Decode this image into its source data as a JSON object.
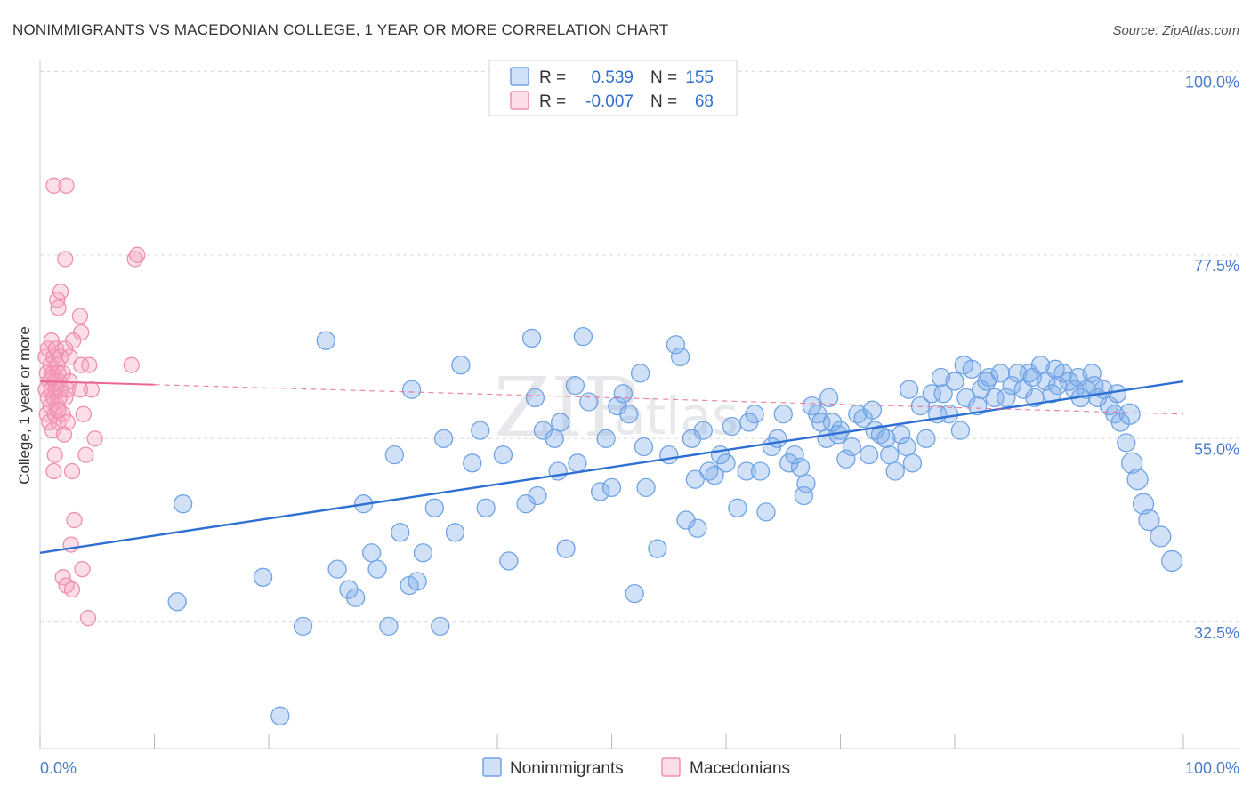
{
  "title": "NONIMMIGRANTS VS MACEDONIAN COLLEGE, 1 YEAR OR MORE CORRELATION CHART",
  "source": "Source: ZipAtlas.com",
  "watermark": {
    "zip": "ZIP",
    "atlas": "atlas"
  },
  "colors": {
    "blue": "#6fa3e6",
    "blue_fill": "rgba(120,168,232,0.35)",
    "blue_line": "#2d6fd2",
    "pink": "#ef8fb0",
    "pink_fill": "rgba(245,160,190,0.35)",
    "pink_line": "#e8688f",
    "grid": "#d8d8d8",
    "tick_label": "#4a7cc9"
  },
  "legend": {
    "rows": [
      {
        "r_label": "R =",
        "r_value": "0.539",
        "n_label": "N =",
        "n_value": "155"
      },
      {
        "r_label": "R =",
        "r_value": "-0.007",
        "n_label": "N =",
        "n_value": "68"
      }
    ]
  },
  "chart_data": {
    "type": "scatter",
    "ylabel": "College, 1 year or more",
    "xlabel": "",
    "xlim": [
      0,
      100
    ],
    "ylim": [
      17,
      102
    ],
    "x_tick_labels": {
      "left": "0.0%",
      "right": "100.0%"
    },
    "y_ticks": [
      {
        "value": 100.0,
        "label": "100.0%"
      },
      {
        "value": 77.5,
        "label": "77.5%"
      },
      {
        "value": 55.0,
        "label": "55.0%"
      },
      {
        "value": 32.5,
        "label": "32.5%"
      }
    ],
    "series": [
      {
        "name": "Nonimmigrants",
        "r": 0.539,
        "n": 155,
        "trend": {
          "x0": 0,
          "y0": 41.0,
          "x1": 100,
          "y1": 62.0,
          "dashed": false
        },
        "points": [
          [
            12,
            35
          ],
          [
            12.5,
            47
          ],
          [
            19.5,
            38
          ],
          [
            21,
            21
          ],
          [
            23,
            32
          ],
          [
            25,
            67
          ],
          [
            26,
            39
          ],
          [
            27,
            36.5
          ],
          [
            27.6,
            35.5
          ],
          [
            28.3,
            47
          ],
          [
            29,
            41
          ],
          [
            29.5,
            39
          ],
          [
            30.5,
            32
          ],
          [
            31,
            53
          ],
          [
            31.5,
            43.5
          ],
          [
            32.3,
            37
          ],
          [
            32.5,
            61
          ],
          [
            33,
            37.5
          ],
          [
            33.5,
            41
          ],
          [
            34.5,
            46.5
          ],
          [
            35,
            32
          ],
          [
            35.3,
            55
          ],
          [
            36.3,
            43.5
          ],
          [
            36.8,
            64
          ],
          [
            37.8,
            52
          ],
          [
            38.5,
            56
          ],
          [
            39,
            46.5
          ],
          [
            40.5,
            53
          ],
          [
            41,
            40
          ],
          [
            42.5,
            47
          ],
          [
            43,
            67.3
          ],
          [
            43.3,
            60
          ],
          [
            44,
            56
          ],
          [
            45,
            55
          ],
          [
            45.3,
            51
          ],
          [
            46,
            41.5
          ],
          [
            46.8,
            61.5
          ],
          [
            47.5,
            67.5
          ],
          [
            48,
            59.5
          ],
          [
            49,
            48.5
          ],
          [
            49.5,
            55
          ],
          [
            50.5,
            59
          ],
          [
            51,
            60.5
          ],
          [
            51.5,
            58
          ],
          [
            52,
            36
          ],
          [
            52.5,
            63
          ],
          [
            53,
            49
          ],
          [
            54,
            41.5
          ],
          [
            55,
            53
          ],
          [
            55.6,
            66.5
          ],
          [
            56,
            65
          ],
          [
            57,
            55
          ],
          [
            57.5,
            44
          ],
          [
            58,
            56
          ],
          [
            58.5,
            51
          ],
          [
            59,
            50.5
          ],
          [
            59.5,
            53
          ],
          [
            60,
            52
          ],
          [
            60.5,
            56.5
          ],
          [
            61,
            46.5
          ],
          [
            61.8,
            51
          ],
          [
            62.5,
            58
          ],
          [
            63,
            51
          ],
          [
            63.5,
            46
          ],
          [
            64.5,
            55
          ],
          [
            65,
            58
          ],
          [
            65.5,
            52
          ],
          [
            66,
            53
          ],
          [
            66.5,
            51.5
          ],
          [
            67,
            49.5
          ],
          [
            68,
            58
          ],
          [
            68.3,
            57
          ],
          [
            68.8,
            55
          ],
          [
            69.3,
            57
          ],
          [
            69.8,
            55.5
          ],
          [
            70.5,
            52.5
          ],
          [
            71,
            54
          ],
          [
            71.5,
            58
          ],
          [
            72,
            57.5
          ],
          [
            72.5,
            53
          ],
          [
            73,
            56
          ],
          [
            73.5,
            55.5
          ],
          [
            74.3,
            53
          ],
          [
            74.8,
            51
          ],
          [
            75.3,
            55.5
          ],
          [
            75.8,
            54
          ],
          [
            76.3,
            52
          ],
          [
            77,
            59
          ],
          [
            77.5,
            55
          ],
          [
            78,
            60.5
          ],
          [
            78.5,
            58
          ],
          [
            79,
            60.5
          ],
          [
            79.5,
            58
          ],
          [
            80,
            62
          ],
          [
            80.5,
            56
          ],
          [
            81,
            60
          ],
          [
            81.5,
            63.5
          ],
          [
            82,
            59
          ],
          [
            82.3,
            61
          ],
          [
            82.8,
            62
          ],
          [
            83.5,
            60
          ],
          [
            84,
            63
          ],
          [
            84.5,
            60
          ],
          [
            85,
            61.5
          ],
          [
            85.5,
            63
          ],
          [
            86,
            61
          ],
          [
            86.5,
            63
          ],
          [
            87,
            60
          ],
          [
            87.5,
            64
          ],
          [
            88,
            62
          ],
          [
            88.5,
            60.5
          ],
          [
            89,
            61.5
          ],
          [
            89.5,
            63
          ],
          [
            90,
            62
          ],
          [
            90.5,
            61
          ],
          [
            91,
            60
          ],
          [
            91.5,
            61
          ],
          [
            92,
            63
          ],
          [
            92.5,
            60
          ],
          [
            93,
            61
          ],
          [
            93.5,
            59
          ],
          [
            94,
            58
          ],
          [
            94.5,
            57
          ],
          [
            95,
            54.5
          ],
          [
            95.5,
            52
          ],
          [
            96,
            50
          ],
          [
            96.5,
            47
          ],
          [
            97,
            45
          ],
          [
            98,
            43
          ],
          [
            99,
            40
          ],
          [
            43.5,
            48
          ],
          [
            45.5,
            57
          ],
          [
            47,
            52
          ],
          [
            50,
            49
          ],
          [
            52.8,
            54
          ],
          [
            56.5,
            45
          ],
          [
            57.3,
            50
          ],
          [
            62,
            57
          ],
          [
            64,
            54
          ],
          [
            66.8,
            48
          ],
          [
            67.5,
            59
          ],
          [
            69,
            60
          ],
          [
            70,
            56
          ],
          [
            72.8,
            58.5
          ],
          [
            74,
            55
          ],
          [
            76,
            61
          ],
          [
            78.8,
            62.5
          ],
          [
            80.8,
            64
          ],
          [
            83,
            62.5
          ],
          [
            86.8,
            62.5
          ],
          [
            88.8,
            63.5
          ],
          [
            90.8,
            62.5
          ],
          [
            92.2,
            61.5
          ],
          [
            94.2,
            60.5
          ],
          [
            95.3,
            58
          ]
        ]
      },
      {
        "name": "Macedonians",
        "r": -0.007,
        "n": 68,
        "trend": {
          "x0": 0,
          "y0": 62.0,
          "x1": 100,
          "y1": 58.0,
          "dashed": true,
          "solid_until_x": 10
        },
        "points": [
          [
            0.5,
            65
          ],
          [
            0.5,
            61
          ],
          [
            0.6,
            63
          ],
          [
            0.6,
            58
          ],
          [
            0.7,
            66
          ],
          [
            0.7,
            60
          ],
          [
            0.8,
            62
          ],
          [
            0.8,
            57
          ],
          [
            0.9,
            64
          ],
          [
            0.9,
            59
          ],
          [
            1.0,
            67
          ],
          [
            1.0,
            61
          ],
          [
            1.1,
            63
          ],
          [
            1.1,
            56
          ],
          [
            1.2,
            65
          ],
          [
            1.2,
            60
          ],
          [
            1.3,
            62
          ],
          [
            1.3,
            58
          ],
          [
            1.4,
            66
          ],
          [
            1.4,
            61
          ],
          [
            1.5,
            64
          ],
          [
            1.5,
            59
          ],
          [
            1.6,
            63
          ],
          [
            1.6,
            57
          ],
          [
            1.7,
            62
          ],
          [
            1.7,
            60
          ],
          [
            1.8,
            65
          ],
          [
            1.8,
            61
          ],
          [
            2.0,
            58
          ],
          [
            2.0,
            63
          ],
          [
            2.2,
            66
          ],
          [
            2.2,
            60
          ],
          [
            2.4,
            61
          ],
          [
            2.4,
            57
          ],
          [
            2.6,
            62
          ],
          [
            2.6,
            65
          ],
          [
            1.2,
            86
          ],
          [
            2.3,
            86
          ],
          [
            2.2,
            77
          ],
          [
            8.3,
            77
          ],
          [
            8.5,
            77.5
          ],
          [
            1.5,
            72
          ],
          [
            1.6,
            71
          ],
          [
            1.8,
            73
          ],
          [
            3.5,
            70
          ],
          [
            3.6,
            68
          ],
          [
            3.6,
            64
          ],
          [
            4.3,
            64
          ],
          [
            4.5,
            61
          ],
          [
            4.8,
            55
          ],
          [
            3.8,
            58
          ],
          [
            4.0,
            53
          ],
          [
            1.3,
            53
          ],
          [
            1.2,
            51
          ],
          [
            2.8,
            51
          ],
          [
            3.0,
            45
          ],
          [
            2.7,
            42
          ],
          [
            3.7,
            39
          ],
          [
            2.0,
            38
          ],
          [
            2.3,
            37
          ],
          [
            2.8,
            36.5
          ],
          [
            4.2,
            33
          ],
          [
            8.0,
            64
          ],
          [
            3.5,
            61
          ],
          [
            2.9,
            67
          ],
          [
            2.1,
            55.5
          ],
          [
            1.6,
            58.5
          ],
          [
            1.0,
            62.5
          ]
        ]
      }
    ]
  },
  "bottom_legend": [
    {
      "label": "Nonimmigrants"
    },
    {
      "label": "Macedonians"
    }
  ]
}
